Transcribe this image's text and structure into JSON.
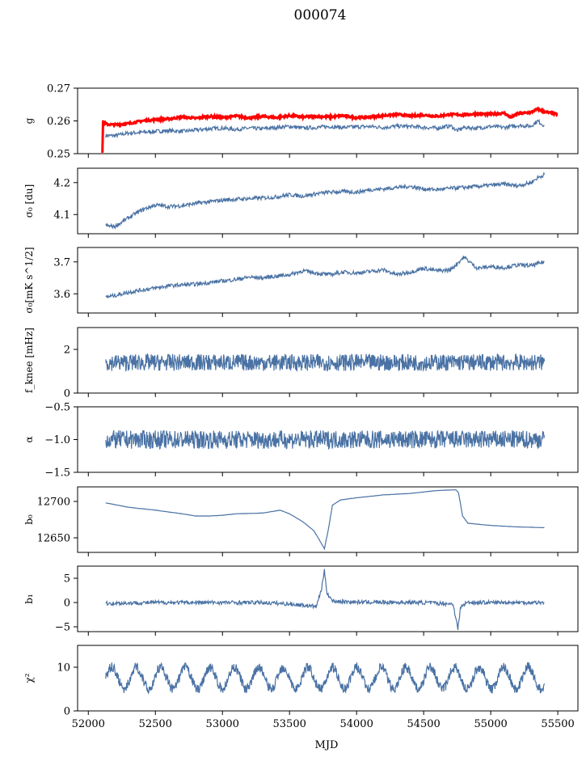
{
  "figure_title": "000074",
  "colors": {
    "series": "#4a72a4",
    "overlay": "#ff0000",
    "axes": "#000000"
  },
  "chart_data": [
    {
      "type": "line",
      "ylabel": "g",
      "ylim": [
        0.25,
        0.27
      ],
      "yticks": [
        0.25,
        0.26,
        0.27
      ],
      "ytick_labels": [
        "0.25",
        "0.26",
        "0.27"
      ],
      "series": [
        {
          "color": "#4a72a4",
          "points": [
            [
              52130,
              0.2555
            ],
            [
              52200,
              0.2555
            ],
            [
              52300,
              0.2563
            ],
            [
              52400,
              0.2565
            ],
            [
              52500,
              0.2568
            ],
            [
              52600,
              0.257
            ],
            [
              52700,
              0.2568
            ],
            [
              52800,
              0.2572
            ],
            [
              52900,
              0.2576
            ],
            [
              53000,
              0.2578
            ],
            [
              53100,
              0.2574
            ],
            [
              53200,
              0.2578
            ],
            [
              53300,
              0.2576
            ],
            [
              53400,
              0.258
            ],
            [
              53500,
              0.2583
            ],
            [
              53600,
              0.2578
            ],
            [
              53700,
              0.258
            ],
            [
              53800,
              0.2583
            ],
            [
              53900,
              0.258
            ],
            [
              54000,
              0.2582
            ],
            [
              54100,
              0.2583
            ],
            [
              54200,
              0.258
            ],
            [
              54300,
              0.2584
            ],
            [
              54400,
              0.2583
            ],
            [
              54500,
              0.258
            ],
            [
              54600,
              0.2578
            ],
            [
              54700,
              0.2585
            ],
            [
              54750,
              0.257
            ],
            [
              54800,
              0.258
            ],
            [
              54900,
              0.2578
            ],
            [
              55000,
              0.2583
            ],
            [
              55100,
              0.258
            ],
            [
              55200,
              0.2586
            ],
            [
              55300,
              0.2584
            ],
            [
              55350,
              0.26
            ],
            [
              55400,
              0.2585
            ]
          ]
        },
        {
          "color": "#ff0000",
          "points": [
            [
              52105,
              0.25
            ],
            [
              52110,
              0.26
            ],
            [
              52130,
              0.259
            ],
            [
              52200,
              0.2588
            ],
            [
              52300,
              0.2592
            ],
            [
              52400,
              0.26
            ],
            [
              52500,
              0.2604
            ],
            [
              52600,
              0.2606
            ],
            [
              52700,
              0.2612
            ],
            [
              52800,
              0.2608
            ],
            [
              52900,
              0.2614
            ],
            [
              53000,
              0.261
            ],
            [
              53100,
              0.2615
            ],
            [
              53200,
              0.2609
            ],
            [
              53300,
              0.2614
            ],
            [
              53400,
              0.261
            ],
            [
              53500,
              0.2616
            ],
            [
              53600,
              0.2612
            ],
            [
              53700,
              0.2614
            ],
            [
              53800,
              0.2612
            ],
            [
              53900,
              0.2616
            ],
            [
              54000,
              0.261
            ],
            [
              54100,
              0.2612
            ],
            [
              54200,
              0.2616
            ],
            [
              54300,
              0.262
            ],
            [
              54400,
              0.2615
            ],
            [
              54500,
              0.2618
            ],
            [
              54600,
              0.2614
            ],
            [
              54700,
              0.262
            ],
            [
              54800,
              0.2618
            ],
            [
              54900,
              0.2622
            ],
            [
              55000,
              0.262
            ],
            [
              55100,
              0.2624
            ],
            [
              55150,
              0.261
            ],
            [
              55200,
              0.2622
            ],
            [
              55300,
              0.2626
            ],
            [
              55350,
              0.2636
            ],
            [
              55400,
              0.2628
            ],
            [
              55500,
              0.262
            ]
          ]
        }
      ]
    },
    {
      "type": "line",
      "ylabel": "σ₀ [du]",
      "ylim": [
        4.04,
        4.245
      ],
      "yticks": [
        4.1,
        4.2
      ],
      "ytick_labels": [
        "4.1",
        "4.2"
      ],
      "series": [
        {
          "color": "#4a72a4",
          "points": [
            [
              52130,
              4.065
            ],
            [
              52200,
              4.063
            ],
            [
              52300,
              4.09
            ],
            [
              52400,
              4.115
            ],
            [
              52500,
              4.13
            ],
            [
              52600,
              4.125
            ],
            [
              52700,
              4.128
            ],
            [
              52800,
              4.135
            ],
            [
              52900,
              4.14
            ],
            [
              53000,
              4.145
            ],
            [
              53100,
              4.148
            ],
            [
              53200,
              4.15
            ],
            [
              53300,
              4.152
            ],
            [
              53400,
              4.155
            ],
            [
              53500,
              4.162
            ],
            [
              53600,
              4.158
            ],
            [
              53700,
              4.165
            ],
            [
              53800,
              4.17
            ],
            [
              53900,
              4.172
            ],
            [
              54000,
              4.17
            ],
            [
              54100,
              4.178
            ],
            [
              54200,
              4.18
            ],
            [
              54300,
              4.185
            ],
            [
              54400,
              4.188
            ],
            [
              54500,
              4.18
            ],
            [
              54600,
              4.178
            ],
            [
              54700,
              4.182
            ],
            [
              54800,
              4.185
            ],
            [
              54900,
              4.188
            ],
            [
              55000,
              4.192
            ],
            [
              55100,
              4.195
            ],
            [
              55200,
              4.19
            ],
            [
              55300,
              4.2
            ],
            [
              55350,
              4.215
            ],
            [
              55400,
              4.225
            ]
          ]
        }
      ]
    },
    {
      "type": "line",
      "ylabel": "σ₀[mK s^1/2]",
      "ylim": [
        3.54,
        3.745
      ],
      "yticks": [
        3.6,
        3.7
      ],
      "ytick_labels": [
        "3.6",
        "3.7"
      ],
      "series": [
        {
          "color": "#4a72a4",
          "points": [
            [
              52130,
              3.59
            ],
            [
              52200,
              3.595
            ],
            [
              52300,
              3.605
            ],
            [
              52400,
              3.612
            ],
            [
              52500,
              3.618
            ],
            [
              52600,
              3.625
            ],
            [
              52700,
              3.628
            ],
            [
              52800,
              3.63
            ],
            [
              52900,
              3.635
            ],
            [
              53000,
              3.64
            ],
            [
              53100,
              3.645
            ],
            [
              53200,
              3.652
            ],
            [
              53300,
              3.65
            ],
            [
              53400,
              3.655
            ],
            [
              53500,
              3.66
            ],
            [
              53600,
              3.672
            ],
            [
              53700,
              3.665
            ],
            [
              53800,
              3.66
            ],
            [
              53900,
              3.668
            ],
            [
              54000,
              3.665
            ],
            [
              54100,
              3.67
            ],
            [
              54200,
              3.675
            ],
            [
              54300,
              3.66
            ],
            [
              54400,
              3.668
            ],
            [
              54500,
              3.68
            ],
            [
              54600,
              3.672
            ],
            [
              54700,
              3.675
            ],
            [
              54800,
              3.715
            ],
            [
              54900,
              3.68
            ],
            [
              55000,
              3.685
            ],
            [
              55100,
              3.682
            ],
            [
              55200,
              3.69
            ],
            [
              55300,
              3.688
            ],
            [
              55400,
              3.7
            ]
          ]
        }
      ]
    },
    {
      "type": "line",
      "ylabel": "f_knee [mHz]",
      "ylim": [
        0,
        3
      ],
      "yticks": [
        0,
        2
      ],
      "ytick_labels": [
        "0",
        "2"
      ],
      "series": [
        {
          "color": "#4a72a4",
          "mean": 1.4,
          "amplitude": 0.55,
          "x_range": [
            52130,
            55400
          ]
        }
      ]
    },
    {
      "type": "line",
      "ylabel": "α",
      "ylim": [
        -1.5,
        -0.5
      ],
      "yticks": [
        -1.5,
        -1.0,
        -0.5
      ],
      "ytick_labels": [
        "−1.5",
        "−1.0",
        "−0.5"
      ],
      "series": [
        {
          "color": "#4a72a4",
          "mean": -1.0,
          "amplitude": 0.2,
          "x_range": [
            52130,
            55400
          ]
        }
      ]
    },
    {
      "type": "line",
      "ylabel": "b₀",
      "ylim": [
        12630,
        12720
      ],
      "yticks": [
        12650,
        12700
      ],
      "ytick_labels": [
        "12650",
        "12700"
      ],
      "series": [
        {
          "color": "#4a72a4",
          "points": [
            [
              52130,
              12698
            ],
            [
              52300,
              12692
            ],
            [
              52500,
              12688
            ],
            [
              52700,
              12683
            ],
            [
              52800,
              12680
            ],
            [
              52900,
              12680
            ],
            [
              53000,
              12681
            ],
            [
              53100,
              12683
            ],
            [
              53300,
              12684
            ],
            [
              53430,
              12688
            ],
            [
              53500,
              12683
            ],
            [
              53600,
              12672
            ],
            [
              53680,
              12660
            ],
            [
              53720,
              12648
            ],
            [
              53760,
              12635
            ],
            [
              53790,
              12662
            ],
            [
              53820,
              12695
            ],
            [
              53880,
              12702
            ],
            [
              54000,
              12705
            ],
            [
              54200,
              12709
            ],
            [
              54400,
              12711
            ],
            [
              54600,
              12715
            ],
            [
              54740,
              12716
            ],
            [
              54760,
              12712
            ],
            [
              54790,
              12680
            ],
            [
              54830,
              12670
            ],
            [
              55000,
              12667
            ],
            [
              55200,
              12665
            ],
            [
              55400,
              12664
            ]
          ]
        }
      ]
    },
    {
      "type": "line",
      "ylabel": "b₁",
      "ylim": [
        -6,
        7.5
      ],
      "yticks": [
        -5,
        0,
        5
      ],
      "ytick_labels": [
        "−5",
        "0",
        "5"
      ],
      "series": [
        {
          "color": "#4a72a4",
          "points": [
            [
              52130,
              -0.2
            ],
            [
              52500,
              0.0
            ],
            [
              53000,
              0.0
            ],
            [
              53300,
              0.0
            ],
            [
              53500,
              -0.3
            ],
            [
              53700,
              -0.8
            ],
            [
              53740,
              3.0
            ],
            [
              53760,
              6.5
            ],
            [
              53780,
              2.0
            ],
            [
              53820,
              0.3
            ],
            [
              54000,
              0.1
            ],
            [
              54500,
              0.0
            ],
            [
              54720,
              -0.3
            ],
            [
              54755,
              -5.5
            ],
            [
              54775,
              -1.0
            ],
            [
              54820,
              0.0
            ],
            [
              55400,
              0.0
            ]
          ]
        }
      ]
    },
    {
      "type": "line",
      "ylabel": "χ²",
      "ylim": [
        0,
        15
      ],
      "yticks": [
        0,
        10
      ],
      "ytick_labels": [
        "0",
        "10"
      ],
      "series": [
        {
          "color": "#4a72a4",
          "mean": 7.5,
          "amplitude": 2.5,
          "period_days": 182.6,
          "x_range": [
            52130,
            55400
          ]
        }
      ]
    }
  ],
  "x_axis": {
    "label": "MJD",
    "xlim": [
      51920,
      55650
    ],
    "ticks": [
      52000,
      52500,
      53000,
      53500,
      54000,
      54500,
      55000,
      55500
    ],
    "tick_labels": [
      "52000",
      "52500",
      "53000",
      "53500",
      "54000",
      "54500",
      "55000",
      "55500"
    ]
  }
}
